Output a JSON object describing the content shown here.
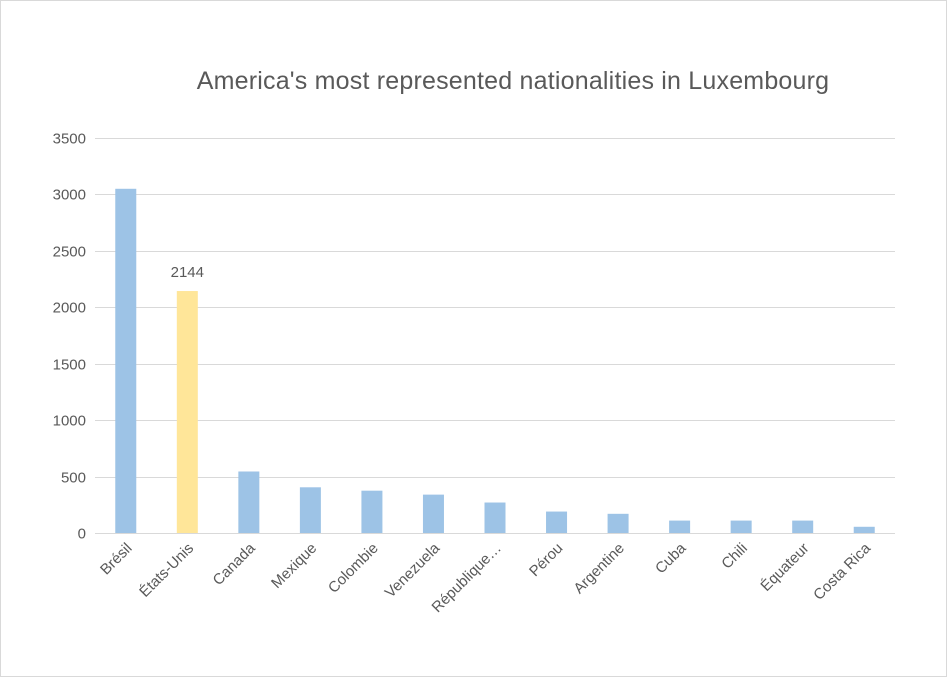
{
  "chart_data": {
    "type": "bar",
    "title": "America's most represented nationalities in Luxembourg",
    "xlabel": "",
    "ylabel": "",
    "ylim": [
      0,
      3500
    ],
    "yticks": [
      0,
      500,
      1000,
      1500,
      2000,
      2500,
      3000,
      3500
    ],
    "grid": true,
    "legend": "none",
    "categories": [
      "Brésil",
      "États-Unis",
      "Canada",
      "Mexique",
      "Colombie",
      "Venezuela",
      "République…",
      "Pérou",
      "Argentine",
      "Cuba",
      "Chili",
      "Équateur",
      "Costa Rica"
    ],
    "values": [
      3050,
      2144,
      545,
      405,
      375,
      340,
      270,
      190,
      170,
      110,
      110,
      110,
      55
    ],
    "highlight_index": 1,
    "data_labels": [
      {
        "index": 1,
        "text": "2144"
      }
    ],
    "colors": {
      "bar": "#9dc3e6",
      "highlight": "#ffe699",
      "grid": "#d9d9d9",
      "text": "#595959"
    }
  }
}
